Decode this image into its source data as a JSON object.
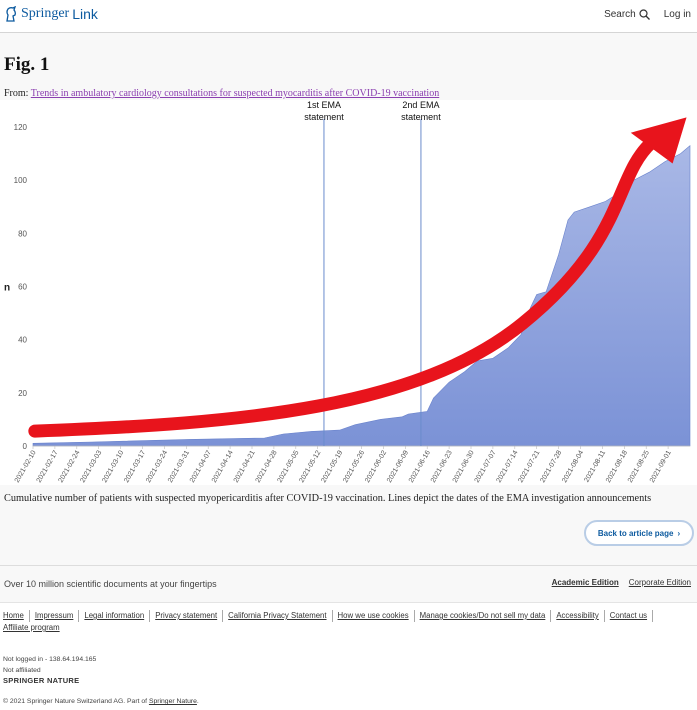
{
  "header": {
    "brand": "Springer",
    "brand_link": "Link",
    "search_label": "Search",
    "login_label": "Log in"
  },
  "figure": {
    "title": "Fig. 1",
    "from_prefix": "From:",
    "from_link": "Trends in ambulatory cardiology consultations for suspected myocarditis after COVID-19 vaccination",
    "caption": "Cumulative number of patients with suspected myopericarditis after COVID-19 vaccination. Lines depict the dates of the EMA investigation announcements",
    "back_button": "Back to article page"
  },
  "chart_data": {
    "type": "area",
    "ylabel": "n",
    "ylim": [
      0,
      120
    ],
    "yticks": [
      0,
      20,
      40,
      60,
      80,
      100,
      120
    ],
    "x_start": "2021-02-10",
    "x_end": "2021-09-08",
    "xticks": [
      "2021-02-10",
      "2021-02-17",
      "2021-02-24",
      "2021-03-03",
      "2021-03-10",
      "2021-03-17",
      "2021-03-24",
      "2021-03-31",
      "2021-04-07",
      "2021-04-14",
      "2021-04-21",
      "2021-04-28",
      "2021-05-05",
      "2021-05-12",
      "2021-05-19",
      "2021-05-26",
      "2021-06-02",
      "2021-06-09",
      "2021-06-16",
      "2021-06-23",
      "2021-06-30",
      "2021-07-07",
      "2021-07-14",
      "2021-07-21",
      "2021-07-28",
      "2021-08-04",
      "2021-08-11",
      "2021-08-18",
      "2021-08-25",
      "2021-09-01"
    ],
    "series": [
      {
        "points": [
          [
            "2021-02-10",
            1
          ],
          [
            "2021-03-01",
            1.5
          ],
          [
            "2021-04-01",
            2.5
          ],
          [
            "2021-04-25",
            3
          ],
          [
            "2021-05-01",
            4.5
          ],
          [
            "2021-05-10",
            5.5
          ],
          [
            "2021-05-19",
            6
          ],
          [
            "2021-05-24",
            8
          ],
          [
            "2021-06-01",
            10
          ],
          [
            "2021-06-08",
            11
          ],
          [
            "2021-06-10",
            12
          ],
          [
            "2021-06-16",
            13
          ],
          [
            "2021-06-18",
            18
          ],
          [
            "2021-06-23",
            24
          ],
          [
            "2021-06-28",
            28
          ],
          [
            "2021-07-02",
            32
          ],
          [
            "2021-07-07",
            33
          ],
          [
            "2021-07-12",
            37
          ],
          [
            "2021-07-16",
            42
          ],
          [
            "2021-07-19",
            52
          ],
          [
            "2021-07-21",
            57
          ],
          [
            "2021-07-24",
            58
          ],
          [
            "2021-07-28",
            72
          ],
          [
            "2021-07-31",
            85
          ],
          [
            "2021-08-02",
            88
          ],
          [
            "2021-08-07",
            90
          ],
          [
            "2021-08-12",
            92
          ],
          [
            "2021-08-16",
            95
          ],
          [
            "2021-08-21",
            100
          ],
          [
            "2021-08-26",
            103
          ],
          [
            "2021-08-31",
            107
          ],
          [
            "2021-09-05",
            110
          ],
          [
            "2021-09-08",
            113
          ]
        ],
        "color": "#8aa0d8"
      }
    ],
    "vlines": [
      {
        "date": "2021-05-14",
        "label1": "1st EMA",
        "label2": "statement"
      },
      {
        "date": "2021-06-14",
        "label1": "2nd EMA",
        "label2": "statement"
      }
    ],
    "arrow_color": "#e8141c"
  },
  "footer": {
    "tagline": "Over 10 million scientific documents at your fingertips",
    "editions": [
      "Academic Edition",
      "Corporate Edition"
    ],
    "links": [
      "Home",
      "Impressum",
      "Legal information",
      "Privacy statement",
      "California Privacy Statement",
      "How we use cookies",
      "Manage cookies/Do not sell my data",
      "Accessibility",
      "Contact us",
      "Affiliate program"
    ],
    "not_logged": "Not logged in - 138.64.194.165",
    "not_affiliated": "Not affiliated",
    "publisher": "SPRINGER NATURE",
    "copyright": "© 2021 Springer Nature Switzerland AG. Part of",
    "copyright_link": "Springer Nature",
    "copyright_end": "."
  }
}
